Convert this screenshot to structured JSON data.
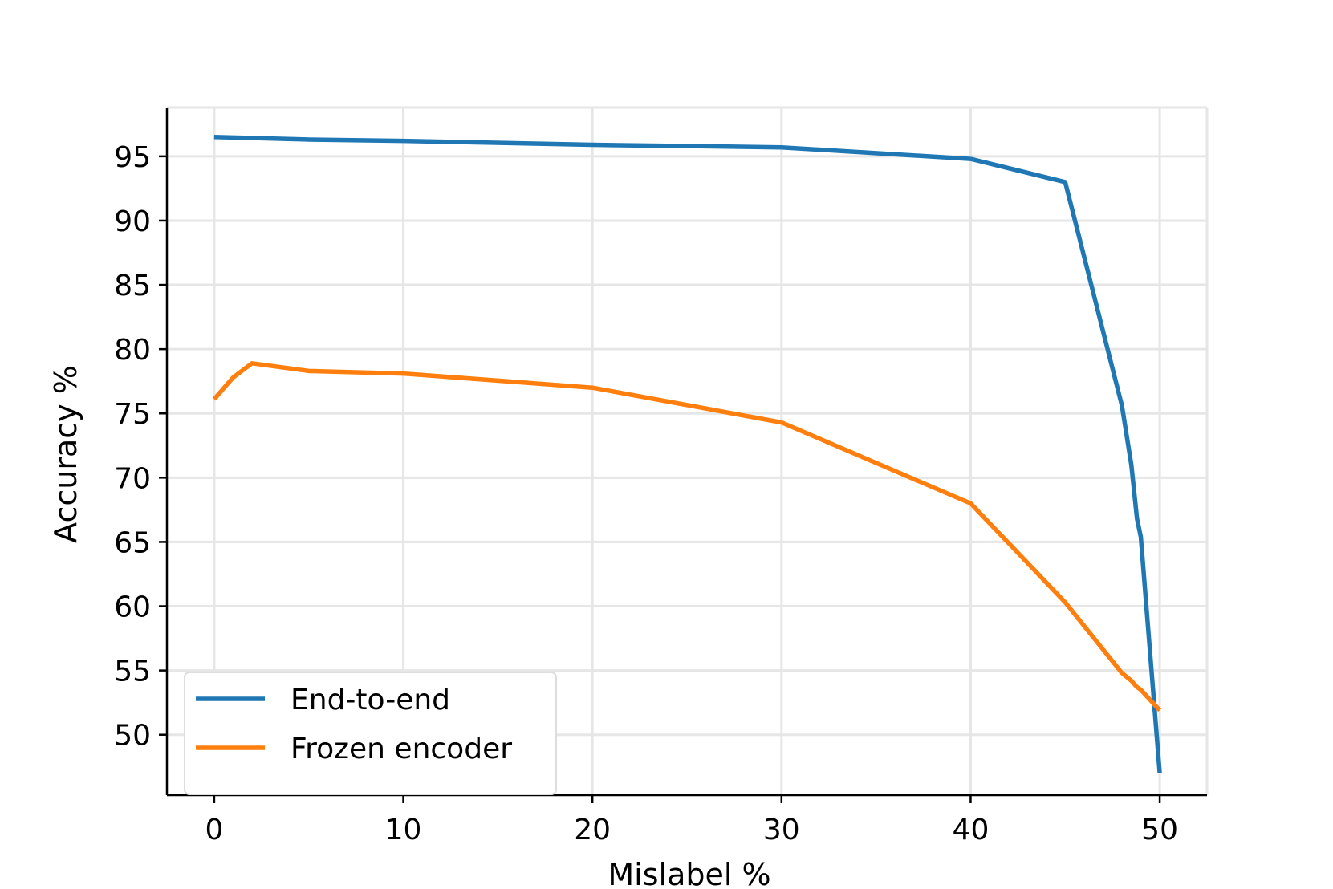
{
  "chart_data": {
    "type": "line",
    "title": "",
    "xlabel": "Mislabel %",
    "ylabel": "Accuracy %",
    "xlim": [
      -2.5,
      52.5
    ],
    "ylim": [
      45.3,
      98.8
    ],
    "xticks": [
      0,
      10,
      20,
      30,
      40,
      50
    ],
    "yticks": [
      50,
      55,
      60,
      65,
      70,
      75,
      80,
      85,
      90,
      95
    ],
    "grid": true,
    "legend_position": "lower-left",
    "series": [
      {
        "name": "End-to-end",
        "color": "#1f77b4",
        "x": [
          0,
          5,
          10,
          20,
          30,
          40,
          45,
          48,
          48.5,
          48.8,
          49,
          50
        ],
        "y": [
          96.5,
          96.3,
          96.2,
          95.9,
          95.7,
          94.8,
          93.0,
          75.6,
          71.0,
          66.8,
          65.4,
          47.0
        ]
      },
      {
        "name": "Frozen encoder",
        "color": "#ff7f0e",
        "x": [
          0,
          1,
          2,
          5,
          10,
          20,
          30,
          40,
          45,
          48,
          48.5,
          48.8,
          49,
          50
        ],
        "y": [
          76.1,
          77.8,
          78.9,
          78.3,
          78.1,
          77.0,
          74.3,
          68.0,
          60.3,
          54.8,
          54.2,
          53.7,
          53.5,
          51.9
        ]
      }
    ]
  }
}
